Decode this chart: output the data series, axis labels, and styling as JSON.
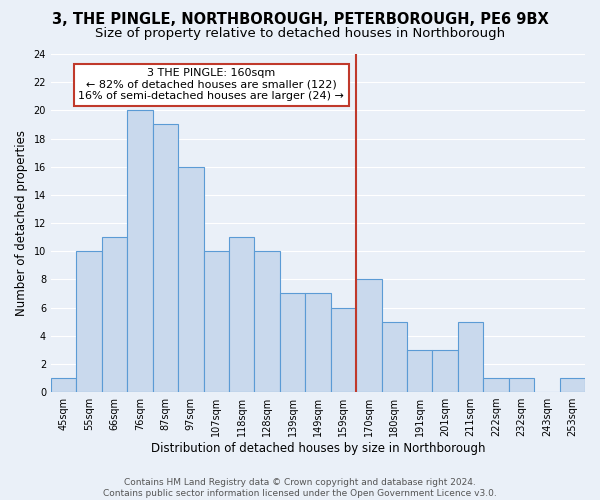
{
  "title": "3, THE PINGLE, NORTHBOROUGH, PETERBOROUGH, PE6 9BX",
  "subtitle": "Size of property relative to detached houses in Northborough",
  "xlabel": "Distribution of detached houses by size in Northborough",
  "ylabel": "Number of detached properties",
  "categories": [
    "45sqm",
    "55sqm",
    "66sqm",
    "76sqm",
    "87sqm",
    "97sqm",
    "107sqm",
    "118sqm",
    "128sqm",
    "139sqm",
    "149sqm",
    "159sqm",
    "170sqm",
    "180sqm",
    "191sqm",
    "201sqm",
    "211sqm",
    "222sqm",
    "232sqm",
    "243sqm",
    "253sqm"
  ],
  "values": [
    1,
    10,
    11,
    20,
    19,
    16,
    10,
    11,
    10,
    7,
    7,
    6,
    8,
    5,
    3,
    3,
    5,
    1,
    1,
    0,
    1
  ],
  "bar_color": "#c9d9ed",
  "bar_edge_color": "#5b9bd5",
  "vline_color": "#c0392b",
  "annotation_text": "3 THE PINGLE: 160sqm\n← 82% of detached houses are smaller (122)\n16% of semi-detached houses are larger (24) →",
  "annotation_box_color": "#c0392b",
  "ylim": [
    0,
    24
  ],
  "yticks": [
    0,
    2,
    4,
    6,
    8,
    10,
    12,
    14,
    16,
    18,
    20,
    22,
    24
  ],
  "footer_text": "Contains HM Land Registry data © Crown copyright and database right 2024.\nContains public sector information licensed under the Open Government Licence v3.0.",
  "background_color": "#eaf0f8",
  "plot_background_color": "#eaf0f8",
  "grid_color": "#ffffff",
  "title_fontsize": 10.5,
  "subtitle_fontsize": 9.5,
  "axis_label_fontsize": 8.5,
  "tick_fontsize": 7,
  "annotation_fontsize": 8,
  "footer_fontsize": 6.5
}
